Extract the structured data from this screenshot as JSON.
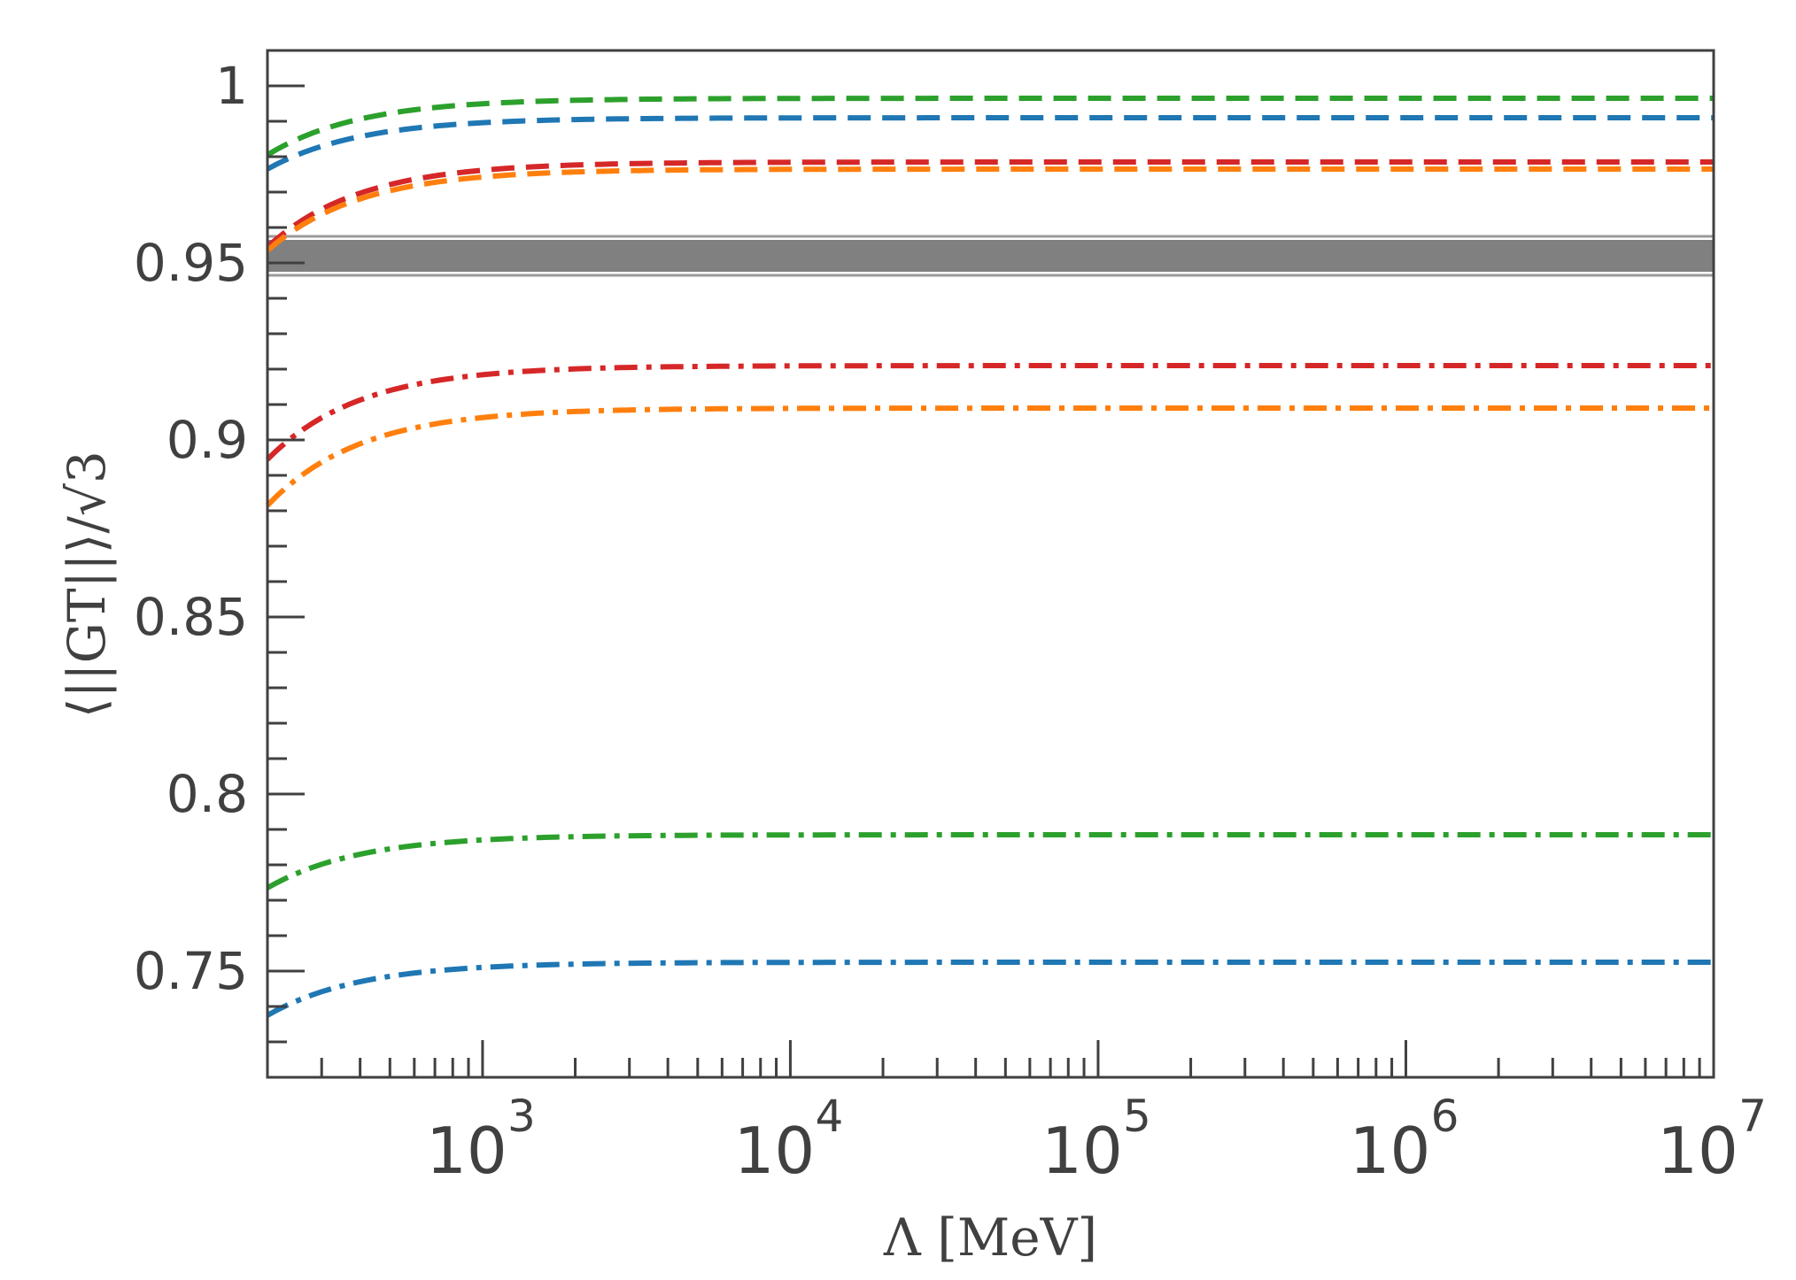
{
  "chart_data": {
    "type": "line",
    "xlabel": "Λ [MeV]",
    "ylabel": "⟨||GT||⟩/√3",
    "xscale": "log",
    "xlim": [
      200,
      10000000
    ],
    "ylim": [
      0.72,
      1.01
    ],
    "xticks": [
      1000,
      10000,
      100000,
      1000000,
      10000000
    ],
    "xtick_labels": [
      {
        "base": "10",
        "exp": "3"
      },
      {
        "base": "10",
        "exp": "4"
      },
      {
        "base": "10",
        "exp": "5"
      },
      {
        "base": "10",
        "exp": "6"
      },
      {
        "base": "10",
        "exp": "7"
      }
    ],
    "yticks": [
      0.75,
      0.8,
      0.85,
      0.9,
      0.95,
      1.0
    ],
    "ytick_labels": [
      "0.75",
      "0.8",
      "0.85",
      "0.9",
      "0.95",
      "1"
    ],
    "grid": false,
    "band": {
      "y_low": 0.9475,
      "y_high": 0.9565,
      "color": "#808080"
    },
    "band_edges": [
      0.9465,
      0.9575
    ],
    "series": [
      {
        "color": "#2ca02c",
        "style": "dashed",
        "y_start": 0.9805,
        "y_end": 0.9965
      },
      {
        "color": "#1f77b4",
        "style": "dashed",
        "y_start": 0.9765,
        "y_end": 0.991
      },
      {
        "color": "#d62728",
        "style": "dashed",
        "y_start": 0.9545,
        "y_end": 0.9785
      },
      {
        "color": "#ff7f0e",
        "style": "dashed",
        "y_start": 0.9535,
        "y_end": 0.9765
      },
      {
        "color": "#d62728",
        "style": "dashdot",
        "y_start": 0.8945,
        "y_end": 0.921
      },
      {
        "color": "#ff7f0e",
        "style": "dashdot",
        "y_start": 0.8815,
        "y_end": 0.909
      },
      {
        "color": "#2ca02c",
        "style": "dashdot",
        "y_start": 0.7735,
        "y_end": 0.7885
      },
      {
        "color": "#1f77b4",
        "style": "dashdot",
        "y_start": 0.7375,
        "y_end": 0.7525
      }
    ]
  }
}
